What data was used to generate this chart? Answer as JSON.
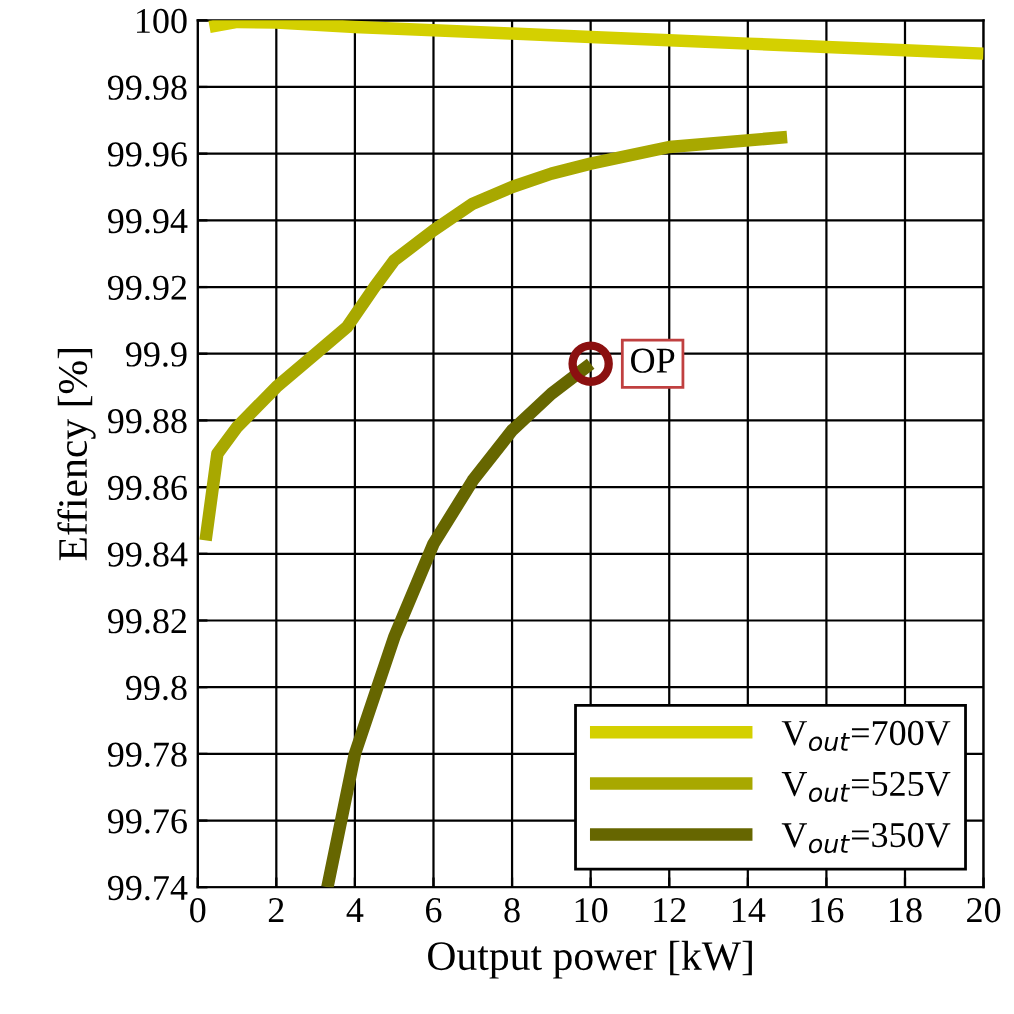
{
  "chart_data": {
    "type": "line",
    "xlabel": "Output power [kW]",
    "ylabel": "Effiency [%]",
    "xlim": [
      0,
      20
    ],
    "ylim": [
      99.74,
      100
    ],
    "xticks": [
      0,
      2,
      4,
      6,
      8,
      10,
      12,
      14,
      16,
      18,
      20
    ],
    "yticks": [
      99.74,
      99.76,
      99.78,
      99.8,
      99.82,
      99.84,
      99.86,
      99.88,
      99.9,
      99.92,
      99.94,
      99.96,
      99.98,
      100
    ],
    "grid": true,
    "legend": "bottom right",
    "line_style": "solid",
    "series": [
      {
        "name": "V$_{out}$=700V",
        "color": "#d4d000",
        "x": [
          0.3,
          1,
          2,
          4,
          6,
          8,
          10,
          12,
          14,
          16,
          18,
          20
        ],
        "values": [
          99.998,
          99.9995,
          99.9993,
          99.998,
          99.997,
          99.996,
          99.995,
          99.994,
          99.993,
          99.992,
          99.991,
          99.99
        ]
      },
      {
        "name": "V$_{out}$=525V",
        "color": "#a8a800",
        "x": [
          0.2,
          0.5,
          1,
          2,
          3,
          3.8,
          4.5,
          5,
          6,
          7,
          8,
          9,
          10,
          12,
          15
        ],
        "values": [
          99.844,
          99.87,
          99.878,
          99.89,
          99.9,
          99.908,
          99.92,
          99.928,
          99.937,
          99.945,
          99.95,
          99.954,
          99.957,
          99.962,
          99.965
        ]
      },
      {
        "name": "V$_{out}$=350V",
        "color": "#666600",
        "x": [
          3.3,
          4,
          5,
          6,
          7,
          8,
          9,
          10
        ],
        "values": [
          99.74,
          99.78,
          99.815,
          99.843,
          99.862,
          99.877,
          99.888,
          99.897
        ]
      }
    ],
    "annotations": [
      {
        "text": "OP",
        "x": 10,
        "y": 99.897
      }
    ]
  }
}
